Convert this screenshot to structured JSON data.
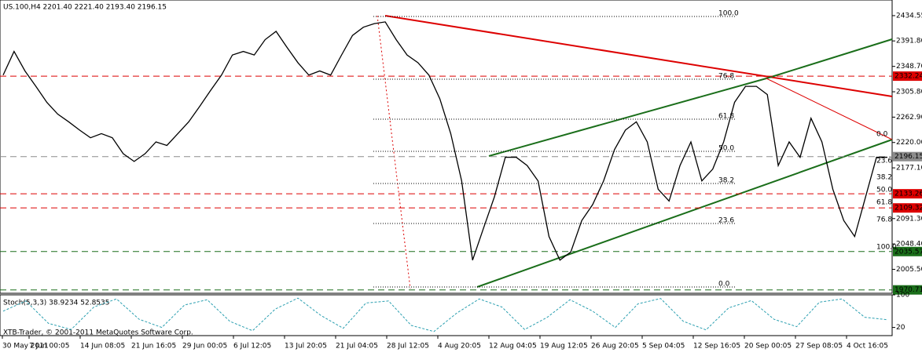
{
  "chart_data": [
    {
      "type": "line",
      "title": "US.100,H4  2201.40 2221.40 2193.40 2196.15",
      "series": [
        {
          "name": "US.100",
          "color": "#000000",
          "values": [
            2334,
            2374,
            2341,
            2315,
            2288,
            2268,
            2255,
            2241,
            2228,
            2235,
            2228,
            2201,
            2188,
            2201,
            2221,
            2215,
            2235,
            2255,
            2281,
            2308,
            2334,
            2368,
            2374,
            2368,
            2394,
            2408,
            2381,
            2355,
            2334,
            2341,
            2334,
            2368,
            2401,
            2415,
            2421,
            2424,
            2394,
            2368,
            2355,
            2334,
            2294,
            2235,
            2155,
            2021,
            2075,
            2128,
            2195,
            2195,
            2181,
            2155,
            2061,
            2021,
            2035,
            2088,
            2115,
            2155,
            2208,
            2241,
            2255,
            2221,
            2141,
            2121,
            2181,
            2221,
            2155,
            2175,
            2221,
            2288,
            2315,
            2315,
            2301,
            2181,
            2221,
            2195,
            2261,
            2221,
            2141,
            2088,
            2061,
            2128,
            2195,
            2195
          ]
        }
      ],
      "ylim": [
        1965,
        2461
      ],
      "yticks": [
        {
          "value": 2434.55,
          "label": "2434.55"
        },
        {
          "value": 2391.8,
          "label": "2391.80"
        },
        {
          "value": 2348.7,
          "label": "2348.70"
        },
        {
          "value": 2305.8,
          "label": "2305.80"
        },
        {
          "value": 2262.9,
          "label": "2262.90"
        },
        {
          "value": 2220.0,
          "label": "2220.00"
        },
        {
          "value": 2177.1,
          "label": "2177.10"
        },
        {
          "value": 2091.3,
          "label": "2091.30"
        },
        {
          "value": 2048.4,
          "label": "2048.40"
        },
        {
          "value": 2005.5,
          "label": "2005.50"
        }
      ],
      "levels": [
        {
          "value": 2332.24,
          "color": "#dd0000"
        },
        {
          "value": 2196.15,
          "color": "#8c8c8c"
        },
        {
          "value": 2133.26,
          "color": "#dd0000"
        },
        {
          "value": 2109.32,
          "color": "#dd0000"
        },
        {
          "value": 2035.57,
          "color": "#1a6e1a"
        },
        {
          "value": 1970.71,
          "color": "#1a6e1a"
        }
      ],
      "fib_labels": [
        "100.0",
        "76.8",
        "61.8",
        "50.0",
        "38.2",
        "23.6",
        "0.0"
      ],
      "time_labels": [
        "30 May 2011",
        "7 Jun 00:05",
        "14 Jun 08:05",
        "21 Jun 16:05",
        "29 Jun 00:05",
        "6 Jul 12:05",
        "13 Jul 20:05",
        "21 Jul 04:05",
        "28 Jul 12:05",
        "4 Aug 20:05",
        "12 Aug 04:05",
        "19 Aug 12:05",
        "26 Aug 20:05",
        "5 Sep 04:05",
        "12 Sep 16:05",
        "20 Sep 00:05",
        "27 Sep 08:05",
        "4 Oct 16:05"
      ],
      "copyright": "XTB-Trader, © 2001-2011 MetaQuotes Software Corp."
    },
    {
      "type": "line",
      "title": "Stoch(5,3,3) 38.9234 52.8535",
      "series": [
        {
          "name": "Stoch",
          "color": "#2a9fb0",
          "values": [
            60,
            85,
            30,
            15,
            70,
            90,
            40,
            20,
            75,
            88,
            35,
            12,
            65,
            92,
            50,
            18,
            80,
            85,
            25,
            10,
            55,
            90,
            70,
            15,
            45,
            88,
            60,
            20,
            78,
            91,
            35,
            14,
            68,
            86,
            40,
            22,
            82,
            90,
            45,
            39
          ]
        }
      ],
      "ylim": [
        0,
        100
      ],
      "yticks": [
        100,
        20
      ]
    }
  ]
}
